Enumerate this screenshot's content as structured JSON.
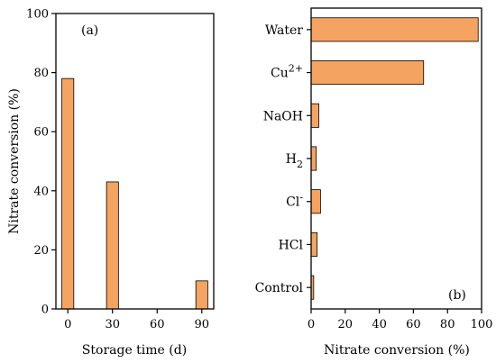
{
  "colors": {
    "bar_fill": "#F4A460",
    "bar_stroke": "#000000",
    "axis": "#000000"
  },
  "chart_data": [
    {
      "type": "bar",
      "panel_label": "(a)",
      "xlabel": "Storage time (d)",
      "ylabel": "Nitrate conversion (%)",
      "x_ticks": [
        0,
        30,
        60,
        90
      ],
      "y_ticks": [
        0,
        20,
        40,
        60,
        80,
        100
      ],
      "xlim": [
        -8,
        98
      ],
      "ylim": [
        0,
        100
      ],
      "x_tick_labels": [
        "0",
        "30",
        "60",
        "90"
      ],
      "y_tick_labels": [
        "0",
        "20",
        "40",
        "60",
        "80",
        "100"
      ],
      "x": [
        0,
        30,
        90
      ],
      "values": [
        78,
        43,
        9.5
      ],
      "bar_width_data": 8
    },
    {
      "type": "bar",
      "orientation": "horizontal",
      "panel_label": "(b)",
      "xlabel": "Nitrate conversion (%)",
      "xlim": [
        0,
        100
      ],
      "x_ticks": [
        0,
        20,
        40,
        60,
        80,
        100
      ],
      "x_tick_labels": [
        "0",
        "20",
        "40",
        "60",
        "80",
        "100"
      ],
      "categories": [
        {
          "main": "Water",
          "sup": "",
          "sub": ""
        },
        {
          "main": "Cu",
          "sup": "2+",
          "sub": ""
        },
        {
          "main": "NaOH",
          "sup": "",
          "sub": ""
        },
        {
          "main": "H",
          "sup": "",
          "sub": "2"
        },
        {
          "main": "Cl",
          "sup": "-",
          "sub": ""
        },
        {
          "main": "HCl",
          "sup": "",
          "sub": ""
        },
        {
          "main": "Control",
          "sup": "",
          "sub": ""
        }
      ],
      "values": [
        98,
        66,
        4.5,
        3,
        5.5,
        3.5,
        1.5
      ]
    }
  ]
}
